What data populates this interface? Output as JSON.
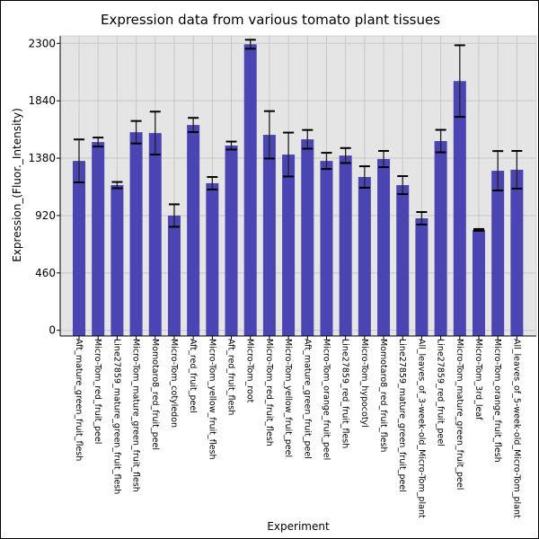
{
  "chart_data": {
    "type": "bar",
    "title": "Expression data from various tomato plant tissues",
    "xlabel": "Experiment",
    "ylabel": "Expression_(Fluor._Intensity)",
    "ylim": [
      0,
      2300
    ],
    "yticks": [
      0,
      460,
      920,
      1380,
      1840,
      2300
    ],
    "grid": true,
    "bar_color": "#4b44b3",
    "plot_bg": "#e5e5e5",
    "categories": [
      "Aft_mature_green_fruit_flesh",
      "Micro-Tom_red_fruit_peel",
      "Line27859_mature_green_fruit_flesh",
      "Micro-Tom_mature_green_fruit_flesh",
      "Momotaro8_red_fruit_peel",
      "Micro-Tom_cotyledon",
      "Aft_red_fruit_peel",
      "Micro-Tom_yellow_fruit_flesh",
      "Aft_red_fruit_flesh",
      "Micro-Tom_root",
      "Micro-Tom_red_fruit_flesh",
      "Micro-Tom_yellow_fruit_peel",
      "Aft_mature_green_fruit_peel",
      "Micro-Tom_orange_fruit_peel",
      "Line27859_red_fruit_flesh",
      "Micro-Tom_hypocotyl",
      "Momotaro8_red_fruit_flesh",
      "Line27859_mature_green_fruit_peel",
      "All_leaves_of_3-week-old_Micro-Tom_plant",
      "Line27859_red_fruit_peel",
      "Micro-Tom_mature_green_fruit_peel",
      "Micro-Tom_3rd_leaf",
      "Micro-Tom_orange_fruit_flesh",
      "All_leaves_of_5-week-old_Micro-Tom_plant"
    ],
    "values": [
      1358,
      1509,
      1164,
      1588,
      1581,
      920,
      1646,
      1179,
      1481,
      2293,
      1567,
      1409,
      1531,
      1358,
      1401,
      1229,
      1373,
      1164,
      898,
      1517,
      1998,
      805,
      1279,
      1287
    ],
    "errors": [
      172,
      36,
      25,
      90,
      172,
      90,
      57,
      50,
      32,
      36,
      190,
      176,
      75,
      65,
      60,
      86,
      65,
      72,
      50,
      90,
      287,
      7,
      158,
      151
    ]
  }
}
